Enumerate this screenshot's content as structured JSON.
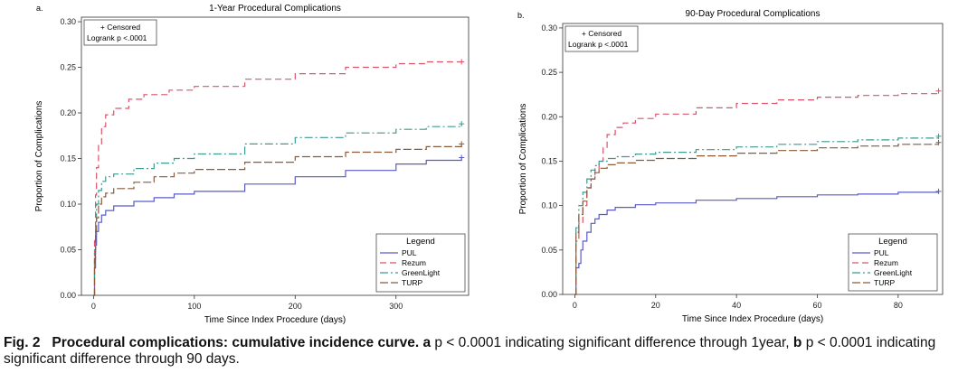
{
  "chart_data": [
    {
      "panel_label": "a.",
      "type": "line",
      "title": "1-Year Procedural Complications",
      "xlabel": "Time Since Index Procedure (days)",
      "ylabel": "Proportion of Complications",
      "xlim": [
        -12,
        372
      ],
      "ylim": [
        0,
        0.305
      ],
      "xticks": [
        0,
        100,
        200,
        300
      ],
      "yticks": [
        "0.00",
        "0.05",
        "0.10",
        "0.15",
        "0.20",
        "0.25",
        "0.30"
      ],
      "ytick_values": [
        0,
        0.05,
        0.1,
        0.15,
        0.2,
        0.25,
        0.3
      ],
      "annotation": [
        "+ Censored",
        "Logrank p <.0001"
      ],
      "legend_title": "Legend",
      "series": [
        {
          "name": "PUL",
          "color": "#5b5bc8",
          "dash": "",
          "x": [
            0,
            1,
            2,
            3,
            5,
            8,
            12,
            20,
            40,
            60,
            80,
            100,
            150,
            200,
            250,
            300,
            330,
            365
          ],
          "y": [
            0.0,
            0.03,
            0.055,
            0.07,
            0.08,
            0.088,
            0.093,
            0.098,
            0.103,
            0.107,
            0.111,
            0.114,
            0.122,
            0.13,
            0.137,
            0.144,
            0.148,
            0.151
          ]
        },
        {
          "name": "Rezum",
          "color": "#d9536a",
          "dash": "7,4",
          "x": [
            0,
            1,
            2,
            3,
            5,
            8,
            12,
            20,
            35,
            50,
            75,
            100,
            150,
            200,
            250,
            300,
            330,
            365
          ],
          "y": [
            0.0,
            0.06,
            0.11,
            0.14,
            0.165,
            0.185,
            0.198,
            0.205,
            0.215,
            0.22,
            0.225,
            0.229,
            0.237,
            0.243,
            0.25,
            0.254,
            0.256,
            0.256
          ]
        },
        {
          "name": "GreenLight",
          "color": "#3f9a8f",
          "dash": "9,3,2,3",
          "x": [
            0,
            1,
            2,
            3,
            5,
            8,
            12,
            20,
            40,
            60,
            80,
            100,
            150,
            200,
            250,
            300,
            330,
            365
          ],
          "y": [
            0.0,
            0.05,
            0.08,
            0.1,
            0.115,
            0.125,
            0.13,
            0.133,
            0.139,
            0.145,
            0.15,
            0.155,
            0.166,
            0.173,
            0.178,
            0.182,
            0.185,
            0.188
          ]
        },
        {
          "name": "TURP",
          "color": "#8a5a3a",
          "dash": "9,3",
          "x": [
            0,
            1,
            2,
            3,
            5,
            8,
            12,
            20,
            40,
            60,
            80,
            100,
            150,
            200,
            250,
            300,
            330,
            365
          ],
          "y": [
            0.0,
            0.04,
            0.07,
            0.085,
            0.1,
            0.108,
            0.112,
            0.117,
            0.124,
            0.13,
            0.134,
            0.138,
            0.146,
            0.152,
            0.157,
            0.16,
            0.163,
            0.166
          ]
        }
      ]
    },
    {
      "panel_label": "b.",
      "type": "line",
      "title": "90-Day Procedural Complications",
      "xlabel": "Time Since Index Procedure (days)",
      "ylabel": "Proportion of Complications",
      "xlim": [
        -3,
        91
      ],
      "ylim": [
        0,
        0.305
      ],
      "xticks": [
        0,
        20,
        40,
        60,
        80
      ],
      "yticks": [
        "0.00",
        "0.05",
        "0.10",
        "0.15",
        "0.20",
        "0.25",
        "0.30"
      ],
      "ytick_values": [
        0,
        0.05,
        0.1,
        0.15,
        0.2,
        0.25,
        0.3
      ],
      "annotation": [
        "+ Censored",
        "Logrank p <.0001"
      ],
      "legend_title": "Legend",
      "series": [
        {
          "name": "PUL",
          "color": "#5b5bc8",
          "dash": "",
          "x": [
            0,
            0.3,
            1,
            1.5,
            2,
            3,
            4,
            5,
            6,
            8,
            10,
            15,
            20,
            30,
            40,
            50,
            60,
            70,
            80,
            90
          ],
          "y": [
            0.0,
            0.03,
            0.035,
            0.05,
            0.06,
            0.07,
            0.08,
            0.085,
            0.09,
            0.095,
            0.098,
            0.101,
            0.103,
            0.106,
            0.108,
            0.11,
            0.112,
            0.113,
            0.115,
            0.116
          ]
        },
        {
          "name": "Rezum",
          "color": "#d9536a",
          "dash": "7,4",
          "x": [
            0,
            0.3,
            1,
            2,
            3,
            4,
            5,
            6,
            7,
            8,
            10,
            12,
            15,
            20,
            30,
            40,
            50,
            60,
            70,
            80,
            90
          ],
          "y": [
            0.0,
            0.06,
            0.08,
            0.1,
            0.12,
            0.13,
            0.14,
            0.15,
            0.165,
            0.18,
            0.188,
            0.193,
            0.198,
            0.203,
            0.21,
            0.215,
            0.219,
            0.222,
            0.224,
            0.226,
            0.229
          ]
        },
        {
          "name": "GreenLight",
          "color": "#3f9a8f",
          "dash": "9,3,2,3",
          "x": [
            0,
            0.3,
            1,
            2,
            3,
            4,
            5,
            6,
            8,
            10,
            15,
            20,
            30,
            40,
            50,
            60,
            70,
            80,
            90
          ],
          "y": [
            0.0,
            0.075,
            0.1,
            0.115,
            0.13,
            0.14,
            0.145,
            0.15,
            0.153,
            0.155,
            0.158,
            0.16,
            0.163,
            0.166,
            0.169,
            0.172,
            0.174,
            0.176,
            0.178
          ]
        },
        {
          "name": "TURP",
          "color": "#8a5a3a",
          "dash": "9,3",
          "x": [
            0,
            0.3,
            1,
            2,
            3,
            4,
            5,
            6,
            8,
            10,
            15,
            20,
            30,
            40,
            50,
            60,
            70,
            80,
            90
          ],
          "y": [
            0.0,
            0.07,
            0.09,
            0.105,
            0.12,
            0.13,
            0.137,
            0.142,
            0.146,
            0.148,
            0.151,
            0.153,
            0.156,
            0.159,
            0.162,
            0.165,
            0.167,
            0.169,
            0.171
          ]
        }
      ]
    }
  ],
  "caption": {
    "fig_label": "Fig. 2",
    "title": "Procedural complications: cumulative incidence curve.",
    "a_label": "a",
    "a_text": "p < 0.0001 indicating significant difference through 1year,",
    "b_label": "b",
    "b_text": "p < 0.0001 indicating significant difference through 90 days."
  }
}
